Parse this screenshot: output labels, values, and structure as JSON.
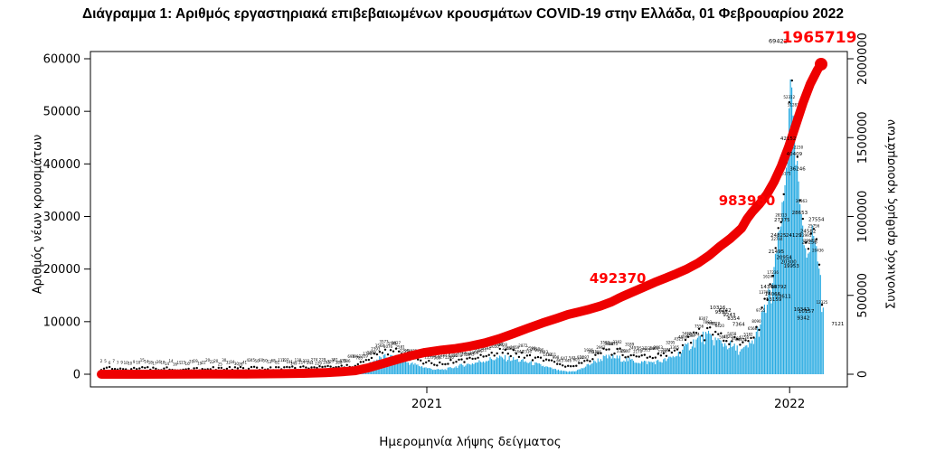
{
  "chart_data": {
    "type": "bar+line",
    "title": "Διάγραμμα 1: Αριθμός εργαστηριακά επιβεβαιωμένων κρουσμάτων COVID-19 στην Ελλάδα, 01 Φεβρουαρίου 2022",
    "x_axis": {
      "label": "Ημερομηνία λήψης δείγματος",
      "ticks": [
        {
          "label": "2021",
          "t": 0.45
        },
        {
          "label": "2022",
          "t": 0.9515
        }
      ]
    },
    "left_axis": {
      "label": "Αριθμός νέων κρουσμάτων",
      "ticks": [
        0,
        10000,
        20000,
        30000,
        40000,
        50000,
        60000
      ],
      "max": 60000
    },
    "right_axis": {
      "label": "Συνολικός αριθμός κρουσμάτων",
      "ticks": [
        0,
        500000,
        1000000,
        1500000,
        2000000
      ],
      "max": 2000000
    },
    "colors": {
      "bars": "#29abe2",
      "line": "#ee0000",
      "annotations": "#ff0000",
      "point_labels": "#000000"
    },
    "series": [
      {
        "name": "daily-new-cases",
        "type": "bar",
        "axis": "left",
        "envelope": [
          [
            0,
            3
          ],
          [
            0.02,
            8
          ],
          [
            0.05,
            12
          ],
          [
            0.08,
            16
          ],
          [
            0.11,
            18
          ],
          [
            0.14,
            22
          ],
          [
            0.17,
            26
          ],
          [
            0.2,
            35
          ],
          [
            0.23,
            60
          ],
          [
            0.26,
            120
          ],
          [
            0.29,
            220
          ],
          [
            0.32,
            330
          ],
          [
            0.34,
            480
          ],
          [
            0.355,
            800
          ],
          [
            0.365,
            1500
          ],
          [
            0.375,
            2400
          ],
          [
            0.385,
            3000
          ],
          [
            0.395,
            3300
          ],
          [
            0.405,
            3200
          ],
          [
            0.415,
            2700
          ],
          [
            0.425,
            2200
          ],
          [
            0.435,
            1800
          ],
          [
            0.445,
            1400
          ],
          [
            0.455,
            1050
          ],
          [
            0.465,
            850
          ],
          [
            0.475,
            900
          ],
          [
            0.485,
            1250
          ],
          [
            0.495,
            1600
          ],
          [
            0.505,
            1850
          ],
          [
            0.515,
            2100
          ],
          [
            0.525,
            2450
          ],
          [
            0.535,
            2750
          ],
          [
            0.545,
            3000
          ],
          [
            0.555,
            3100
          ],
          [
            0.565,
            2950
          ],
          [
            0.575,
            2700
          ],
          [
            0.585,
            2400
          ],
          [
            0.595,
            2100
          ],
          [
            0.605,
            1800
          ],
          [
            0.615,
            1400
          ],
          [
            0.625,
            1000
          ],
          [
            0.635,
            650
          ],
          [
            0.645,
            480
          ],
          [
            0.655,
            600
          ],
          [
            0.665,
            1100
          ],
          [
            0.675,
            1900
          ],
          [
            0.685,
            2600
          ],
          [
            0.695,
            3100
          ],
          [
            0.705,
            3250
          ],
          [
            0.715,
            3050
          ],
          [
            0.725,
            2800
          ],
          [
            0.735,
            2550
          ],
          [
            0.745,
            2350
          ],
          [
            0.755,
            2250
          ],
          [
            0.765,
            2300
          ],
          [
            0.775,
            2500
          ],
          [
            0.785,
            2900
          ],
          [
            0.795,
            3600
          ],
          [
            0.805,
            4600
          ],
          [
            0.815,
            5700
          ],
          [
            0.825,
            6600
          ],
          [
            0.835,
            7100
          ],
          [
            0.845,
            6700
          ],
          [
            0.855,
            6100
          ],
          [
            0.865,
            5600
          ],
          [
            0.872,
            5200
          ],
          [
            0.878,
            4800
          ],
          [
            0.884,
            4400
          ],
          [
            0.89,
            4700
          ],
          [
            0.896,
            5300
          ],
          [
            0.902,
            6400
          ],
          [
            0.908,
            8200
          ],
          [
            0.914,
            10500
          ],
          [
            0.92,
            13159
          ],
          [
            0.926,
            14792
          ],
          [
            0.932,
            21495
          ],
          [
            0.938,
            27375
          ],
          [
            0.944,
            33000
          ],
          [
            0.949,
            43000
          ],
          [
            0.9525,
            59500
          ],
          [
            0.956,
            48000
          ],
          [
            0.96,
            41000
          ],
          [
            0.964,
            36246
          ],
          [
            0.968,
            28653
          ],
          [
            0.972,
            24582
          ],
          [
            0.976,
            23258
          ],
          [
            0.98,
            25000
          ],
          [
            0.984,
            27554
          ],
          [
            0.988,
            24000
          ],
          [
            0.992,
            21000
          ],
          [
            0.996,
            15000
          ],
          [
            1,
            7121
          ]
        ]
      },
      {
        "name": "cumulative-cases",
        "type": "line",
        "axis": "right",
        "points": [
          [
            0,
            0
          ],
          [
            0.05,
            50
          ],
          [
            0.1,
            300
          ],
          [
            0.15,
            900
          ],
          [
            0.2,
            1800
          ],
          [
            0.25,
            3500
          ],
          [
            0.28,
            6000
          ],
          [
            0.31,
            10500
          ],
          [
            0.33,
            15000
          ],
          [
            0.35,
            22000
          ],
          [
            0.37,
            42000
          ],
          [
            0.39,
            68000
          ],
          [
            0.41,
            95000
          ],
          [
            0.43,
            120000
          ],
          [
            0.4475,
            138000
          ],
          [
            0.47,
            153000
          ],
          [
            0.49,
            163000
          ],
          [
            0.51,
            178000
          ],
          [
            0.53,
            198000
          ],
          [
            0.55,
            225000
          ],
          [
            0.57,
            258000
          ],
          [
            0.59,
            292000
          ],
          [
            0.61,
            325000
          ],
          [
            0.63,
            355000
          ],
          [
            0.645,
            378000
          ],
          [
            0.66,
            395000
          ],
          [
            0.675,
            412000
          ],
          [
            0.69,
            432000
          ],
          [
            0.705,
            458000
          ],
          [
            0.714,
            479000
          ],
          [
            0.72,
            492370
          ],
          [
            0.735,
            522000
          ],
          [
            0.75,
            552000
          ],
          [
            0.765,
            582000
          ],
          [
            0.78,
            610000
          ],
          [
            0.795,
            638000
          ],
          [
            0.81,
            668000
          ],
          [
            0.825,
            705000
          ],
          [
            0.84,
            752000
          ],
          [
            0.855,
            810000
          ],
          [
            0.87,
            862000
          ],
          [
            0.885,
            925000
          ],
          [
            0.8925,
            983980
          ],
          [
            0.9,
            1030000
          ],
          [
            0.91,
            1080000
          ],
          [
            0.92,
            1140000
          ],
          [
            0.93,
            1220000
          ],
          [
            0.94,
            1320000
          ],
          [
            0.95,
            1440000
          ],
          [
            0.96,
            1580000
          ],
          [
            0.97,
            1720000
          ],
          [
            0.98,
            1840000
          ],
          [
            0.99,
            1930000
          ],
          [
            0.995,
            1965719
          ]
        ]
      }
    ],
    "annotations": [
      {
        "text": "492370",
        "t": 0.714,
        "v": 579000,
        "size": "normal"
      },
      {
        "text": "983980",
        "t": 0.8925,
        "v": 1072000,
        "size": "normal"
      },
      {
        "text": "1965719",
        "t": 0.9925,
        "v": 2103000,
        "size": "large"
      }
    ],
    "point_labels": [
      {
        "t": 0.9355,
        "v": 63000,
        "text": "69422"
      },
      {
        "t": 0.9495,
        "v": 44500,
        "text": "42152"
      },
      {
        "t": 0.958,
        "v": 41600,
        "text": "40409"
      },
      {
        "t": 0.9625,
        "v": 38800,
        "text": "36246"
      },
      {
        "t": 0.9655,
        "v": 30400,
        "text": "28653"
      },
      {
        "t": 0.941,
        "v": 29050,
        "text": "27375"
      },
      {
        "t": 0.9885,
        "v": 29100,
        "text": "27554"
      },
      {
        "t": 0.936,
        "v": 26100,
        "text": "24825"
      },
      {
        "t": 0.957,
        "v": 26100,
        "text": "24129"
      },
      {
        "t": 0.977,
        "v": 26900,
        "text": "24582"
      },
      {
        "t": 0.979,
        "v": 24800,
        "text": "23258"
      },
      {
        "t": 0.933,
        "v": 23000,
        "text": "21495"
      },
      {
        "t": 0.944,
        "v": 21900,
        "text": "20954"
      },
      {
        "t": 0.95,
        "v": 21100,
        "text": "20300"
      },
      {
        "t": 0.954,
        "v": 20300,
        "text": "19953"
      },
      {
        "t": 0.922,
        "v": 16300,
        "text": "14346"
      },
      {
        "t": 0.9365,
        "v": 16300,
        "text": "14792"
      },
      {
        "t": 0.928,
        "v": 15000,
        "text": "14066"
      },
      {
        "t": 0.9295,
        "v": 13900,
        "text": "13159"
      },
      {
        "t": 0.9425,
        "v": 14500,
        "text": "13611"
      },
      {
        "t": 0.968,
        "v": 12000,
        "text": "10342"
      },
      {
        "t": 0.9745,
        "v": 11700,
        "text": "10157"
      },
      {
        "t": 0.9705,
        "v": 10400,
        "text": "9342"
      },
      {
        "t": 1.018,
        "v": 9300,
        "text": "7121"
      },
      {
        "t": 0.852,
        "v": 12400,
        "text": "10316"
      },
      {
        "t": 0.857,
        "v": 11500,
        "text": "9598"
      },
      {
        "t": 0.862,
        "v": 11900,
        "text": "6242"
      },
      {
        "t": 0.868,
        "v": 11000,
        "text": "9243"
      },
      {
        "t": 0.874,
        "v": 10300,
        "text": "8354"
      },
      {
        "t": 0.881,
        "v": 9200,
        "text": "7364"
      }
    ]
  }
}
